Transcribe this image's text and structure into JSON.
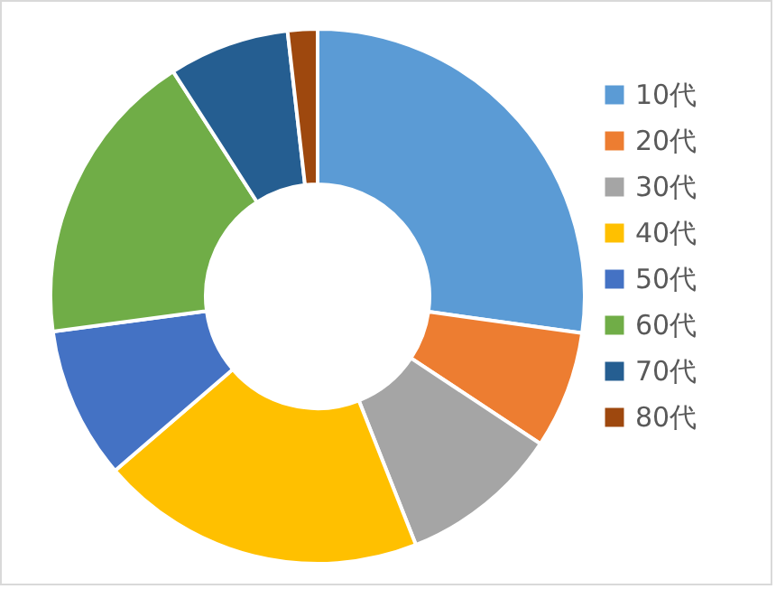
{
  "chart_data": {
    "type": "donut",
    "categories": [
      "10代",
      "20代",
      "30代",
      "40代",
      "50代",
      "60代",
      "70代",
      "80代"
    ],
    "values": [
      27.2,
      7.1,
      9.7,
      19.7,
      9.2,
      18.0,
      7.3,
      1.8
    ],
    "colors": [
      "#5b9bd5",
      "#ed7d31",
      "#a5a5a5",
      "#ffc000",
      "#4472c4",
      "#70ad47",
      "#255e91",
      "#9e480e"
    ],
    "legend": "right"
  }
}
